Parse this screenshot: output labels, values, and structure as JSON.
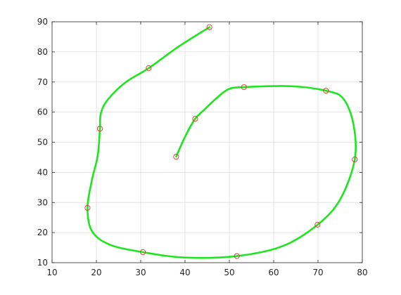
{
  "chart_data": {
    "type": "line",
    "title": "",
    "xlabel": "",
    "ylabel": "",
    "xlim": [
      10,
      80
    ],
    "ylim": [
      10,
      90
    ],
    "grid": true,
    "legend": "none",
    "x_ticks": [
      10,
      20,
      30,
      40,
      50,
      60,
      70,
      80
    ],
    "y_ticks": [
      10,
      20,
      30,
      40,
      50,
      60,
      70,
      80,
      90
    ],
    "line_color": "#1ee61e",
    "marker_color": "#e0443a",
    "series": [
      {
        "marker": "circle",
        "points": [
          [
            45.5,
            88.2
          ],
          [
            31.8,
            74.6
          ],
          [
            20.8,
            54.5
          ],
          [
            18.0,
            28.2
          ],
          [
            30.5,
            13.5
          ],
          [
            51.7,
            12.2
          ],
          [
            69.9,
            22.6
          ],
          [
            78.3,
            44.3
          ],
          [
            71.8,
            67.1
          ],
          [
            53.3,
            68.3
          ],
          [
            42.3,
            57.8
          ],
          [
            38.0,
            45.2
          ]
        ],
        "curve": [
          [
            45.5,
            88.2
          ],
          [
            38.5,
            81.7
          ],
          [
            31.8,
            74.6
          ],
          [
            26.5,
            69.8
          ],
          [
            22.5,
            64.0
          ],
          [
            21.0,
            59.5
          ],
          [
            20.8,
            54.5
          ],
          [
            20.3,
            45.5
          ],
          [
            19.0,
            37.5
          ],
          [
            18.0,
            28.2
          ],
          [
            19.0,
            20.5
          ],
          [
            23.0,
            16.0
          ],
          [
            30.5,
            13.5
          ],
          [
            40.0,
            11.7
          ],
          [
            51.7,
            12.2
          ],
          [
            62.0,
            15.5
          ],
          [
            69.9,
            22.6
          ],
          [
            75.0,
            31.0
          ],
          [
            78.3,
            44.3
          ],
          [
            78.0,
            56.0
          ],
          [
            75.7,
            64.5
          ],
          [
            71.8,
            67.1
          ],
          [
            64.0,
            68.6
          ],
          [
            53.3,
            68.3
          ],
          [
            49.8,
            67.6
          ],
          [
            47.0,
            64.5
          ],
          [
            44.5,
            61.0
          ],
          [
            42.3,
            57.8
          ],
          [
            40.0,
            51.8
          ],
          [
            38.0,
            45.2
          ]
        ]
      }
    ]
  }
}
